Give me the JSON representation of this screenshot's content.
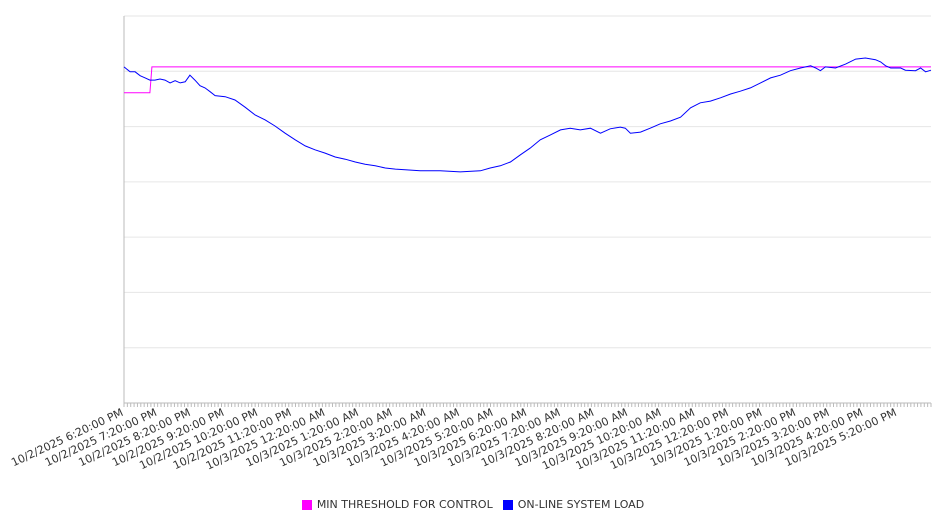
{
  "chart_data": {
    "type": "line",
    "title": "",
    "xlabel": "",
    "ylabel": "",
    "x_unit": "hours since 10/2/2025 6:20:00 PM",
    "xlim": [
      0,
      24
    ],
    "ylim": [
      0,
      70
    ],
    "y_grid_step": 10,
    "y_tick_labels_shown": false,
    "grid": true,
    "legend_position": "bottom",
    "x_tick_labels": [
      "10/2/2025 6:20:00 PM",
      "10/2/2025 7:20:00 PM",
      "10/2/2025 8:20:00 PM",
      "10/2/2025 9:20:00 PM",
      "10/2/2025 10:20:00 PM",
      "10/2/2025 11:20:00 PM",
      "10/3/2025 12:20:00 AM",
      "10/3/2025 1:20:00 AM",
      "10/3/2025 2:20:00 AM",
      "10/3/2025 3:20:00 AM",
      "10/3/2025 4:20:00 AM",
      "10/3/2025 5:20:00 AM",
      "10/3/2025 6:20:00 AM",
      "10/3/2025 7:20:00 AM",
      "10/3/2025 8:20:00 AM",
      "10/3/2025 9:20:00 AM",
      "10/3/2025 10:20:00 AM",
      "10/3/2025 11:20:00 AM",
      "10/3/2025 12:20:00 PM",
      "10/3/2025 1:20:00 PM",
      "10/3/2025 2:20:00 PM",
      "10/3/2025 3:20:00 PM",
      "10/3/2025 4:20:00 PM",
      "10/3/2025 5:20:00 PM"
    ],
    "series": [
      {
        "name": "MIN THRESHOLD FOR CONTROL",
        "color": "#ff00ff",
        "x": [
          0,
          0.77,
          0.83,
          24
        ],
        "y": [
          56.1,
          56.1,
          60.8,
          60.8
        ]
      },
      {
        "name": "ON-LINE SYSTEM LOAD",
        "color": "#0000ff",
        "x": [
          0,
          0.18,
          0.33,
          0.48,
          0.63,
          0.77,
          0.92,
          1.07,
          1.22,
          1.37,
          1.52,
          1.67,
          1.82,
          1.96,
          2.11,
          2.26,
          2.41,
          2.56,
          2.71,
          3.01,
          3.3,
          3.6,
          3.9,
          4.2,
          4.49,
          4.79,
          5.09,
          5.39,
          5.68,
          5.98,
          6.28,
          6.58,
          6.88,
          7.17,
          7.47,
          7.77,
          8.07,
          8.36,
          8.81,
          9.4,
          10.0,
          10.6,
          10.89,
          11.19,
          11.49,
          11.79,
          12.08,
          12.38,
          12.68,
          12.98,
          13.27,
          13.57,
          13.87,
          14.17,
          14.46,
          14.76,
          14.91,
          15.06,
          15.36,
          15.65,
          15.95,
          16.25,
          16.55,
          16.85,
          17.14,
          17.44,
          17.74,
          18.04,
          18.33,
          18.63,
          18.93,
          19.23,
          19.52,
          19.82,
          20.12,
          20.42,
          20.57,
          20.71,
          20.86,
          21.16,
          21.46,
          21.76,
          22.05,
          22.35,
          22.5,
          22.65,
          22.8,
          23.1,
          23.24,
          23.54,
          23.69,
          23.84,
          24
        ],
        "y": [
          60.8,
          59.9,
          59.9,
          59.2,
          58.8,
          58.4,
          58.4,
          58.6,
          58.4,
          57.9,
          58.3,
          57.9,
          58.1,
          59.3,
          58.4,
          57.4,
          57.0,
          56.3,
          55.6,
          55.4,
          54.8,
          53.5,
          52.1,
          51.2,
          50.1,
          48.8,
          47.6,
          46.5,
          45.8,
          45.2,
          44.5,
          44.1,
          43.6,
          43.2,
          42.9,
          42.5,
          42.3,
          42.2,
          42.0,
          42.0,
          41.8,
          42.0,
          42.5,
          42.9,
          43.6,
          44.9,
          46.1,
          47.6,
          48.5,
          49.4,
          49.7,
          49.4,
          49.7,
          48.8,
          49.6,
          49.9,
          49.7,
          48.8,
          49.0,
          49.7,
          50.5,
          51.0,
          51.7,
          53.4,
          54.3,
          54.6,
          55.2,
          55.9,
          56.4,
          57.0,
          57.9,
          58.8,
          59.3,
          60.1,
          60.6,
          61.0,
          60.6,
          60.1,
          60.8,
          60.6,
          61.3,
          62.2,
          62.4,
          62.1,
          61.7,
          61.0,
          60.6,
          60.6,
          60.2,
          60.1,
          60.6,
          59.9,
          60.2
        ]
      }
    ]
  }
}
